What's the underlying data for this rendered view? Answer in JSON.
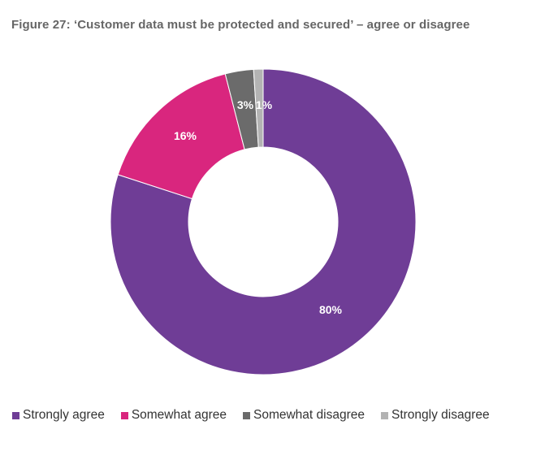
{
  "title": "Figure 27: ‘Customer data must be protected and secured’ – agree or disagree",
  "chart_data": {
    "type": "pie",
    "donut": true,
    "title": "Figure 27: ‘Customer data must be protected and secured’ – agree or disagree",
    "legend_position": "bottom",
    "categories": [
      "Strongly agree",
      "Somewhat agree",
      "Somewhat disagree",
      "Strongly disagree"
    ],
    "values": [
      80,
      16,
      3,
      1
    ],
    "labels": [
      "80%",
      "16%",
      "3%",
      "1%"
    ],
    "colors": [
      "#6f3d96",
      "#d9267e",
      "#6b6b6b",
      "#b3b3b3"
    ]
  }
}
